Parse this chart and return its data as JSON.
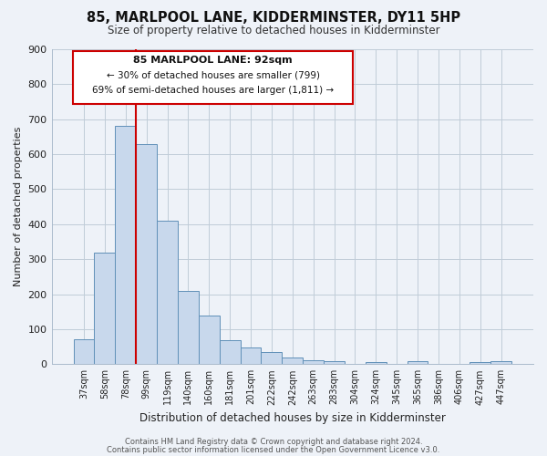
{
  "title": "85, MARLPOOL LANE, KIDDERMINSTER, DY11 5HP",
  "subtitle": "Size of property relative to detached houses in Kidderminster",
  "xlabel": "Distribution of detached houses by size in Kidderminster",
  "ylabel": "Number of detached properties",
  "bar_labels": [
    "37sqm",
    "58sqm",
    "78sqm",
    "99sqm",
    "119sqm",
    "140sqm",
    "160sqm",
    "181sqm",
    "201sqm",
    "222sqm",
    "242sqm",
    "263sqm",
    "283sqm",
    "304sqm",
    "324sqm",
    "345sqm",
    "365sqm",
    "386sqm",
    "406sqm",
    "427sqm",
    "447sqm"
  ],
  "bar_values": [
    70,
    320,
    680,
    630,
    410,
    210,
    138,
    68,
    48,
    35,
    20,
    10,
    8,
    0,
    5,
    0,
    8,
    0,
    0,
    5,
    8
  ],
  "bar_color": "#c8d8ec",
  "bar_edge_color": "#6090b8",
  "vline_color": "#cc0000",
  "ylim": [
    0,
    900
  ],
  "yticks": [
    0,
    100,
    200,
    300,
    400,
    500,
    600,
    700,
    800,
    900
  ],
  "annotation_title": "85 MARLPOOL LANE: 92sqm",
  "annotation_line1": "← 30% of detached houses are smaller (799)",
  "annotation_line2": "69% of semi-detached houses are larger (1,811) →",
  "footer_line1": "Contains HM Land Registry data © Crown copyright and database right 2024.",
  "footer_line2": "Contains public sector information licensed under the Open Government Licence v3.0.",
  "background_color": "#eef2f8",
  "plot_bg_color": "#eef2f8",
  "grid_color": "#c0ccd8"
}
